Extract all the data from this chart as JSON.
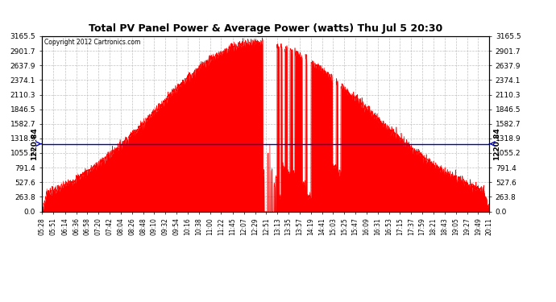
{
  "title": "Total PV Panel Power & Average Power (watts) Thu Jul 5 20:30",
  "copyright": "Copyright 2012 Cartronics.com",
  "average_power": 1220.84,
  "y_max": 3165.5,
  "y_ticks": [
    0.0,
    263.8,
    527.6,
    791.4,
    1055.2,
    1318.9,
    1582.7,
    1846.5,
    2110.3,
    2374.1,
    2637.9,
    2901.7,
    3165.5
  ],
  "fill_color": "#FF0000",
  "line_color": "#FF0000",
  "avg_line_color": "#0000BB",
  "background_color": "#FFFFFF",
  "grid_color": "#BBBBBB",
  "x_tick_labels": [
    "05:28",
    "05:51",
    "06:14",
    "06:36",
    "06:58",
    "07:20",
    "07:42",
    "08:04",
    "08:26",
    "08:48",
    "09:10",
    "09:32",
    "09:54",
    "10:16",
    "10:38",
    "11:00",
    "11:22",
    "11:45",
    "12:07",
    "12:29",
    "12:51",
    "13:13",
    "13:35",
    "13:57",
    "14:19",
    "14:41",
    "15:03",
    "15:25",
    "15:47",
    "16:09",
    "16:31",
    "16:53",
    "17:15",
    "17:37",
    "17:59",
    "18:21",
    "18:43",
    "19:05",
    "19:27",
    "19:49",
    "20:11"
  ]
}
